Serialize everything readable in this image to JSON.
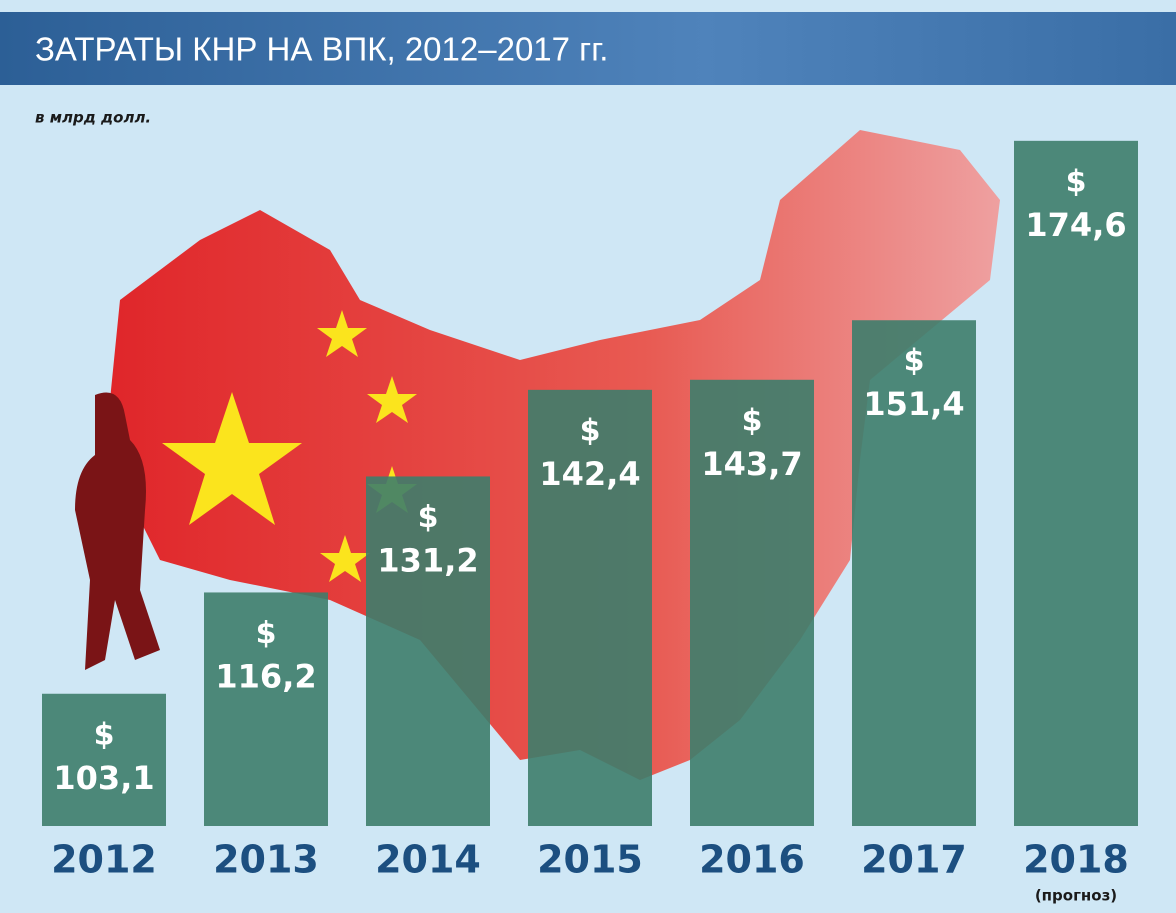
{
  "chart_data": {
    "type": "bar",
    "title": "ЗАТРАТЫ КНР НА ВПК, 2012–2017 гг.",
    "subtitle": "в млрд долл.",
    "categories": [
      "2012",
      "2013",
      "2014",
      "2015",
      "2016",
      "2017",
      "2018"
    ],
    "category_notes": [
      null,
      null,
      null,
      null,
      null,
      null,
      "(прогноз)"
    ],
    "values": [
      103.1,
      116.2,
      131.2,
      142.4,
      143.7,
      151.4,
      174.6
    ],
    "value_labels": [
      "103,1",
      "116,2",
      "131,2",
      "142,4",
      "143,7",
      "151,4",
      "174,6"
    ],
    "value_prefix": "$",
    "color": "#3d7d6b",
    "ylim": [
      86,
      176
    ]
  }
}
